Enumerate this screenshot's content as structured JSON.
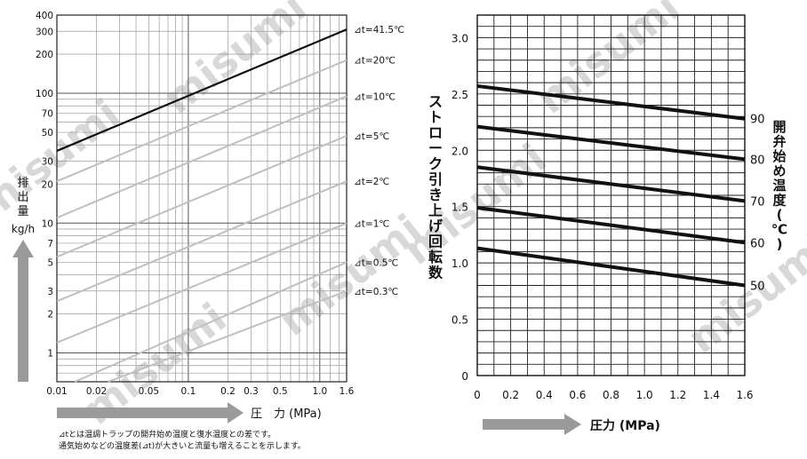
{
  "watermark": "misumi",
  "left_chart": {
    "ylabel_chars": [
      "排",
      "出",
      "量"
    ],
    "yunit": "kg/h",
    "xlabel": "圧　力 (MPa)",
    "y_ticks": [
      "400",
      "300",
      "200",
      "100",
      "70",
      "50",
      "30",
      "20",
      "10",
      "7",
      "5",
      "3",
      "2",
      "1"
    ],
    "x_ticks": [
      "0.01",
      "0.02",
      "0.05",
      "0.1",
      "0.2",
      "0.3",
      "0.5",
      "1.0",
      "1.6"
    ],
    "footnote_lines": [
      "⊿tとは温調トラップの開弁始め温度と復水温度との差です。",
      "通気始めなどの温度差(⊿t)が大きいと流量も増えることを示します。"
    ]
  },
  "right_chart": {
    "ylabel_chars": [
      "ス",
      "ト",
      "ロ",
      "ー",
      "ク",
      "引",
      "き",
      "上",
      "げ",
      "回",
      "転",
      "数"
    ],
    "y2label_chars": [
      "開",
      "弁",
      "始",
      "め",
      "温",
      "度",
      "(",
      "℃",
      ")"
    ],
    "xlabel": "圧力 (MPa)",
    "y_ticks": [
      "3.0",
      "2.5",
      "2.0",
      "1.5",
      "1.0",
      "0.5",
      "0"
    ],
    "x_ticks": [
      "0",
      "0.2",
      "0.4",
      "0.6",
      "0.8",
      "1.0",
      "1.2",
      "1.4",
      "1.6"
    ],
    "y2_ticks": [
      "90",
      "80",
      "70",
      "60",
      "50"
    ]
  },
  "chart_data": [
    {
      "type": "line",
      "xscale": "log",
      "yscale": "log",
      "xlim": [
        0.01,
        1.6
      ],
      "ylim": [
        0.6,
        400
      ],
      "xlabel": "圧　力 (MPa)",
      "ylabel": "排出量 kg/h",
      "grid": true,
      "series": [
        {
          "name": "⊿t=41.5℃",
          "color": "#111111",
          "points": [
            [
              0.01,
              36
            ],
            [
              1.6,
              310
            ]
          ]
        },
        {
          "name": "⊿t=20℃",
          "color": "#bfbfbf",
          "points": [
            [
              0.01,
              21
            ],
            [
              1.6,
              180
            ]
          ]
        },
        {
          "name": "⊿t=10℃",
          "color": "#bfbfbf",
          "points": [
            [
              0.01,
              11
            ],
            [
              1.6,
              95
            ]
          ]
        },
        {
          "name": "⊿t=5℃",
          "color": "#bfbfbf",
          "points": [
            [
              0.01,
              5.5
            ],
            [
              1.6,
              47
            ]
          ]
        },
        {
          "name": "⊿t=2℃",
          "color": "#bfbfbf",
          "points": [
            [
              0.01,
              2.5
            ],
            [
              1.6,
              21
            ]
          ]
        },
        {
          "name": "⊿t=1℃",
          "color": "#bfbfbf",
          "points": [
            [
              0.01,
              1.2
            ],
            [
              1.6,
              10
            ]
          ]
        },
        {
          "name": "⊿t=0.5℃",
          "color": "#bfbfbf",
          "points": [
            [
              0.0137,
              0.6
            ],
            [
              1.6,
              5
            ]
          ]
        },
        {
          "name": "⊿t=0.3℃",
          "color": "#bfbfbf",
          "points": [
            [
              0.0245,
              0.6
            ],
            [
              1.6,
              3
            ]
          ]
        }
      ]
    },
    {
      "type": "line",
      "xlim": [
        0,
        1.6
      ],
      "ylim": [
        0,
        3.2
      ],
      "xlabel": "圧力 (MPa)",
      "ylabel": "ストローク引き上げ回転数",
      "y2label": "開弁始め温度(℃)",
      "grid": true,
      "series": [
        {
          "name": "90",
          "points": [
            [
              0,
              2.57
            ],
            [
              1.6,
              2.28
            ]
          ]
        },
        {
          "name": "80",
          "points": [
            [
              0,
              2.21
            ],
            [
              1.6,
              1.92
            ]
          ]
        },
        {
          "name": "70",
          "points": [
            [
              0,
              1.85
            ],
            [
              1.6,
              1.55
            ]
          ]
        },
        {
          "name": "60",
          "points": [
            [
              0,
              1.49
            ],
            [
              1.6,
              1.18
            ]
          ]
        },
        {
          "name": "50",
          "points": [
            [
              0,
              1.13
            ],
            [
              1.6,
              0.8
            ]
          ]
        }
      ]
    }
  ]
}
